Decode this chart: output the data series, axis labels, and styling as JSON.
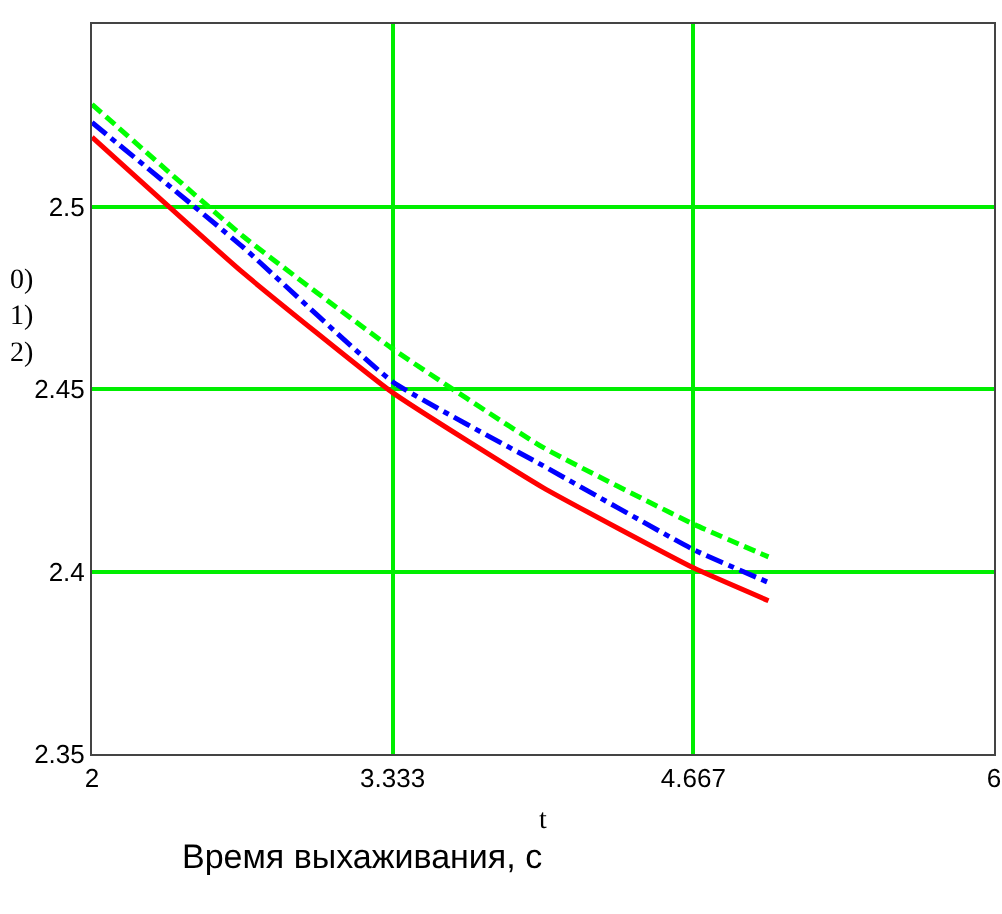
{
  "chart_data": {
    "type": "line",
    "xlabel": "t",
    "ylabel": "0)\n1)\n2)",
    "annotations": [
      "Время выхаживания, с"
    ],
    "xlim": [
      2,
      6
    ],
    "xticks": [
      2,
      3.333,
      4.667,
      6
    ],
    "ylim": [
      2.35,
      2.55
    ],
    "yticks": [
      2.35,
      2.4,
      2.45,
      2.5
    ],
    "grid": true,
    "marker": "none",
    "x": [
      2,
      2.667,
      3.333,
      4,
      4.667,
      5
    ],
    "series": [
      {
        "color": "#ff0000",
        "line_style": "solid",
        "values": [
          2.519,
          2.482,
          2.449,
          2.423,
          2.401,
          2.392
        ]
      },
      {
        "color": "#0000ff",
        "line_style": "dashdot",
        "values": [
          2.523,
          2.489,
          2.452,
          2.429,
          2.406,
          2.397
        ]
      },
      {
        "color": "#00ff00",
        "line_style": "dashed",
        "values": [
          2.528,
          2.492,
          2.461,
          2.434,
          2.413,
          2.404
        ]
      }
    ]
  }
}
